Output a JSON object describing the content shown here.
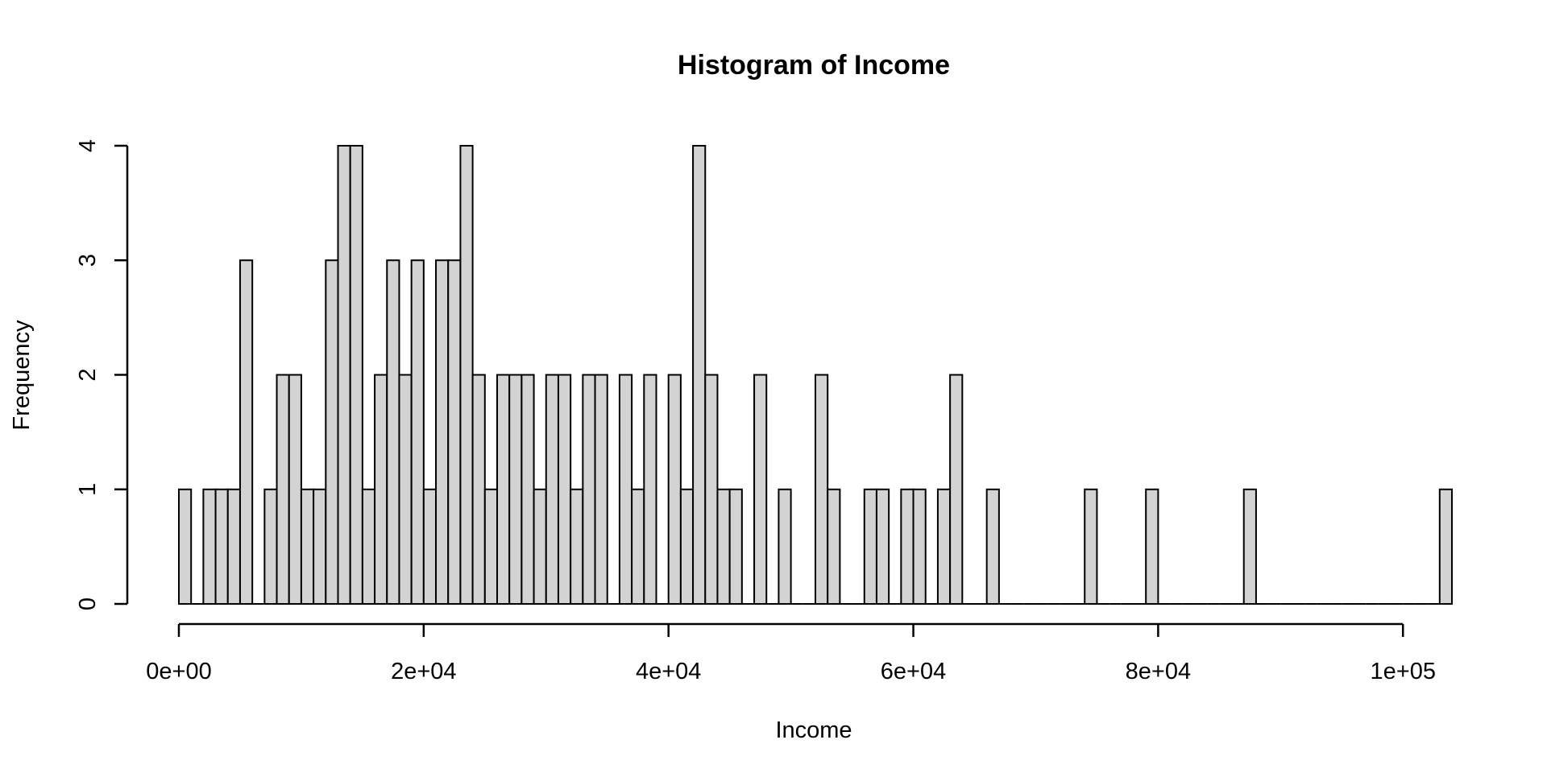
{
  "chart_data": {
    "type": "bar",
    "title": "Histogram of Income",
    "xlabel": "Income",
    "ylabel": "Frequency",
    "bin_width": 1000,
    "x_range": [
      0,
      104000
    ],
    "ylim": [
      0,
      4
    ],
    "x_ticks": [
      {
        "value": 0,
        "label": "0e+00"
      },
      {
        "value": 20000,
        "label": "2e+04"
      },
      {
        "value": 40000,
        "label": "4e+04"
      },
      {
        "value": 60000,
        "label": "6e+04"
      },
      {
        "value": 80000,
        "label": "8e+04"
      },
      {
        "value": 100000,
        "label": "1e+05"
      }
    ],
    "y_ticks": [
      {
        "value": 0,
        "label": "0"
      },
      {
        "value": 1,
        "label": "1"
      },
      {
        "value": 2,
        "label": "2"
      },
      {
        "value": 3,
        "label": "3"
      },
      {
        "value": 4,
        "label": "4"
      }
    ],
    "values": [
      1,
      0,
      1,
      1,
      1,
      3,
      0,
      1,
      2,
      2,
      1,
      1,
      3,
      4,
      4,
      1,
      2,
      3,
      2,
      3,
      1,
      3,
      3,
      4,
      2,
      1,
      2,
      2,
      2,
      1,
      2,
      2,
      1,
      2,
      2,
      0,
      2,
      1,
      2,
      0,
      2,
      1,
      4,
      2,
      1,
      1,
      0,
      2,
      0,
      1,
      0,
      0,
      2,
      1,
      0,
      0,
      1,
      1,
      0,
      1,
      1,
      0,
      1,
      2,
      0,
      0,
      1,
      0,
      0,
      0,
      0,
      0,
      0,
      0,
      1,
      0,
      0,
      0,
      0,
      1,
      0,
      0,
      0,
      0,
      0,
      0,
      0,
      1,
      0,
      0,
      0,
      0,
      0,
      0,
      0,
      0,
      0,
      0,
      0,
      0,
      0,
      0,
      0,
      1
    ],
    "bar_fill": "#d3d3d3",
    "bar_stroke": "#000000",
    "grid": false
  }
}
